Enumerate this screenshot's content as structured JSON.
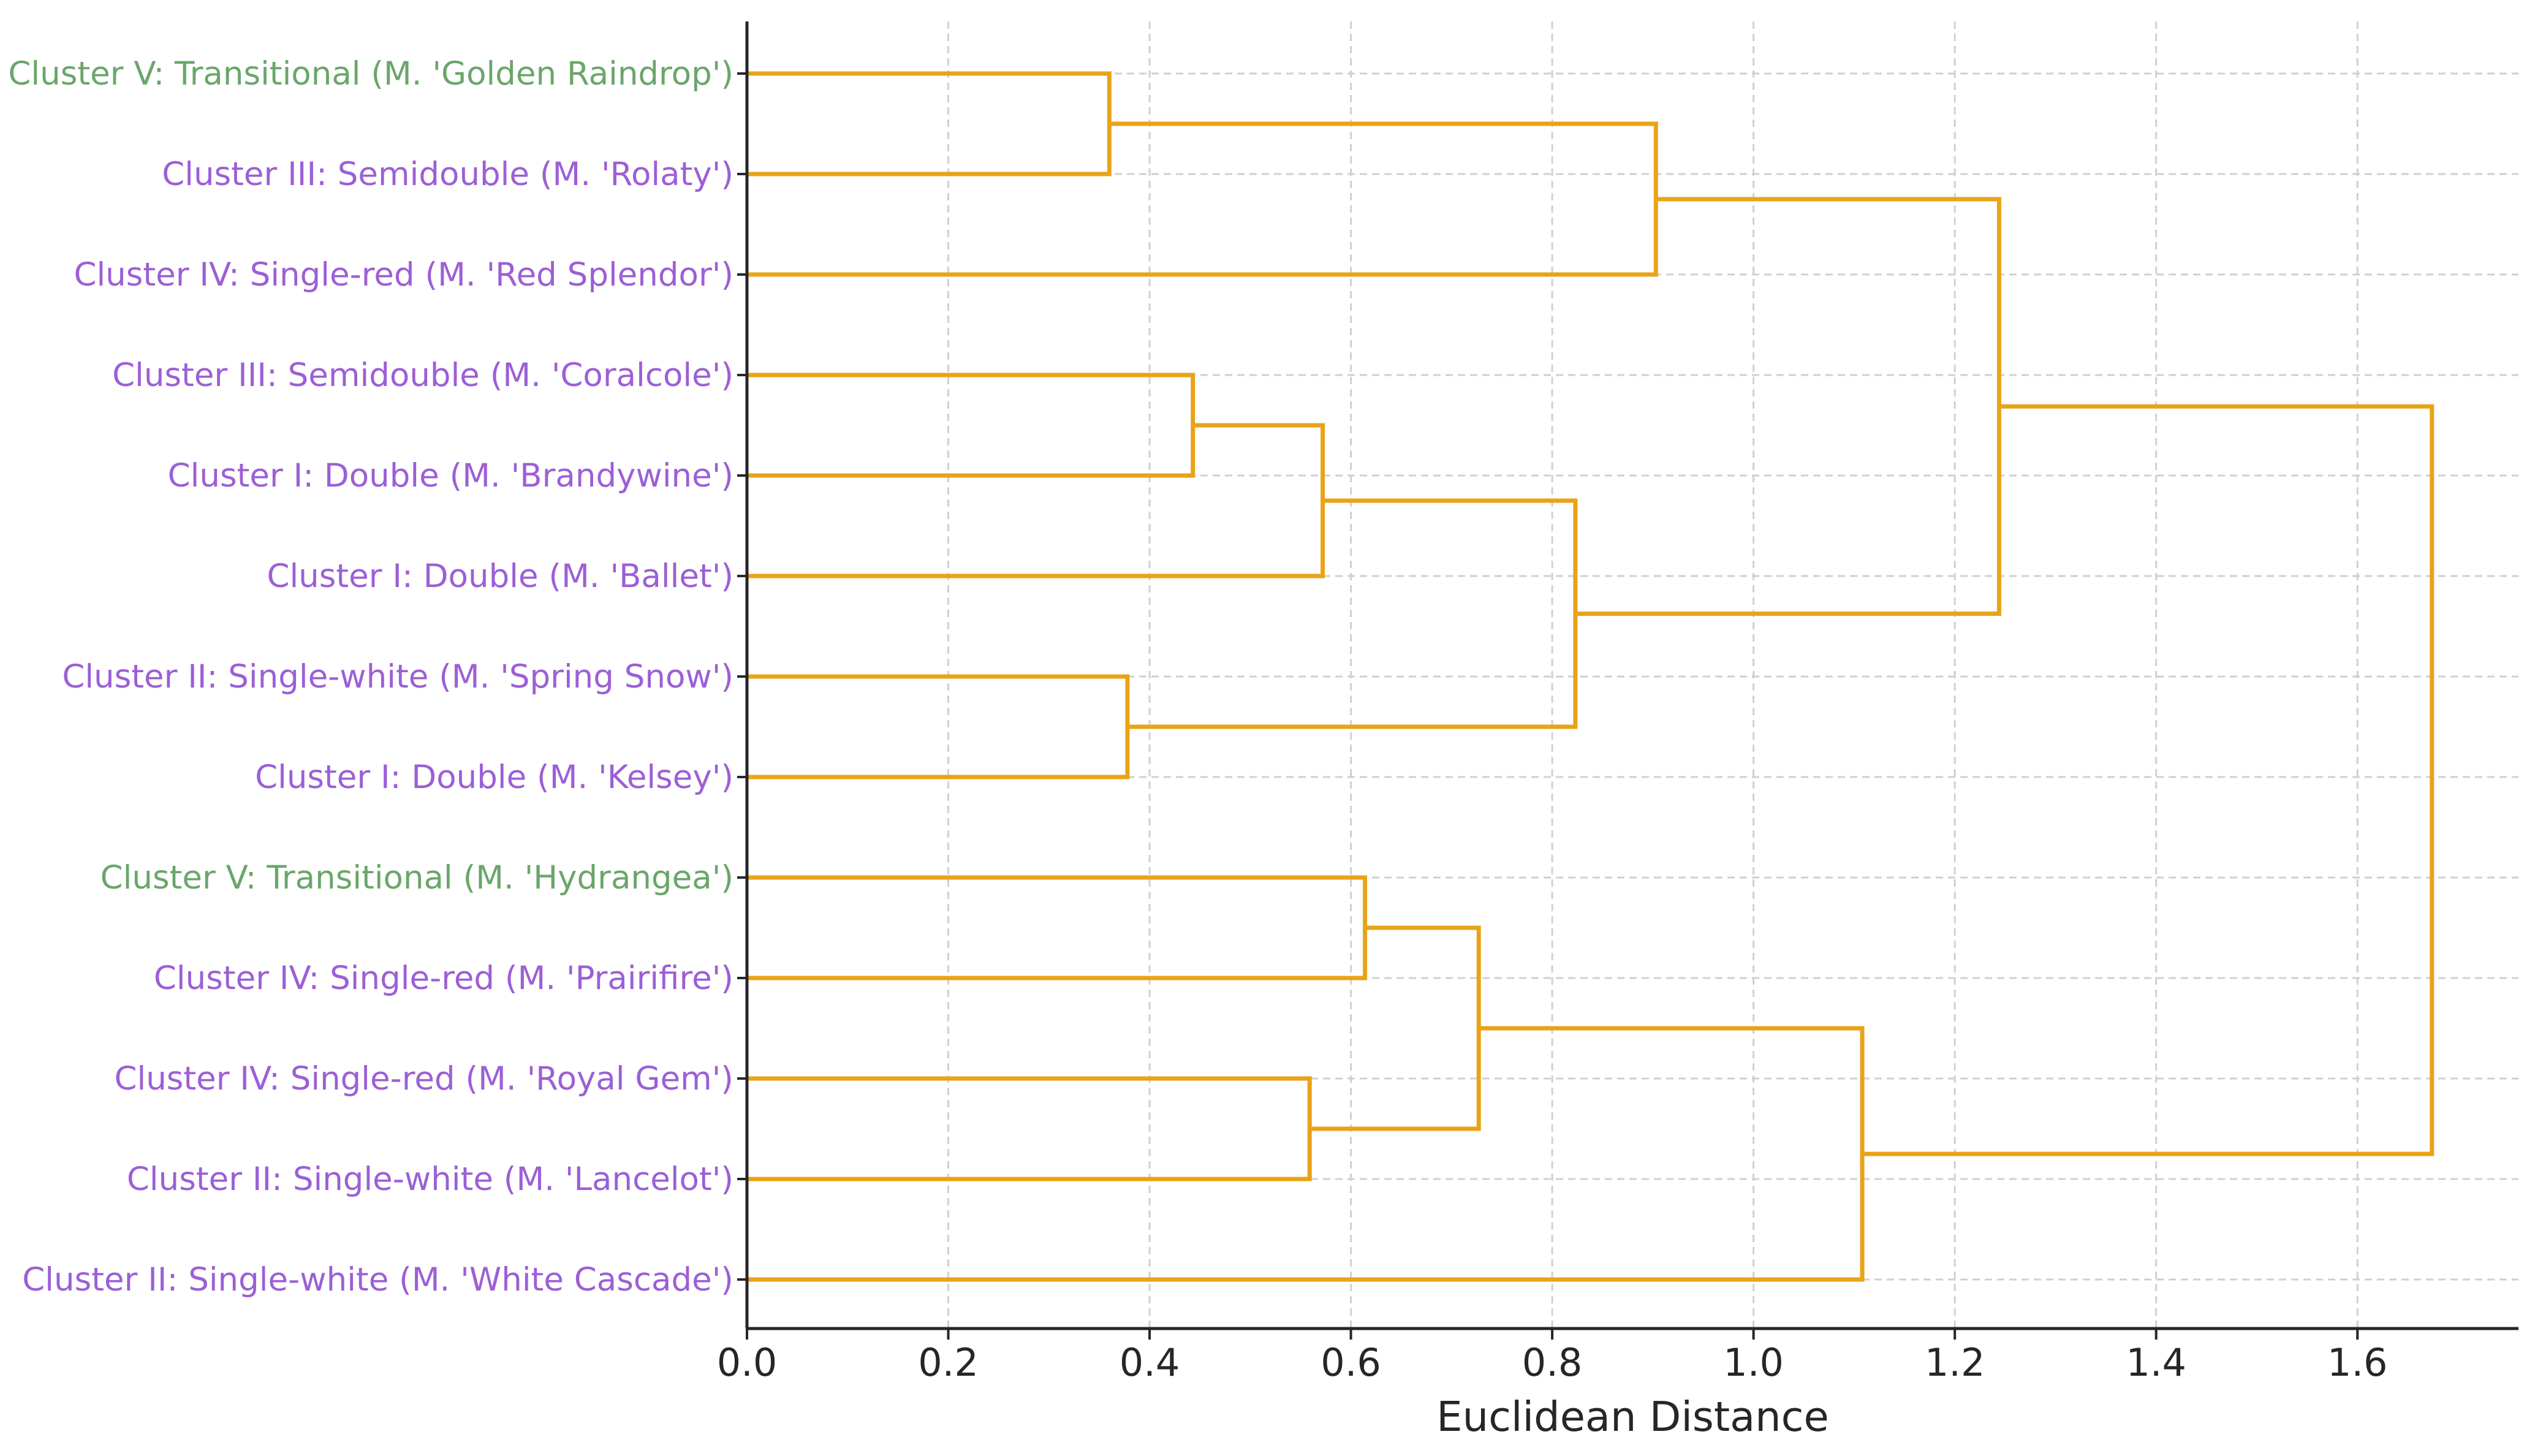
{
  "chart_data": {
    "type": "dendrogram",
    "orientation": "horizontal",
    "xlabel": "Euclidean Distance",
    "xlim": [
      0.0,
      1.76
    ],
    "xticks": [
      0.0,
      0.2,
      0.4,
      0.6,
      0.8,
      1.0,
      1.2,
      1.4,
      1.6
    ],
    "xtick_labels": [
      "0.0",
      "0.2",
      "0.4",
      "0.6",
      "0.8",
      "1.0",
      "1.2",
      "1.4",
      "1.6"
    ],
    "grid": true,
    "link_color": "#e8a317",
    "label_colors": {
      "transitional": "#6aa66a",
      "other": "#9c5fd6"
    },
    "leaves": [
      {
        "label": "Cluster V: Transitional (M. 'Golden Raindrop')",
        "group": "transitional"
      },
      {
        "label": "Cluster III: Semidouble (M. 'Rolaty')",
        "group": "other"
      },
      {
        "label": "Cluster IV: Single-red (M. 'Red Splendor')",
        "group": "other"
      },
      {
        "label": "Cluster III: Semidouble (M. 'Coralcole')",
        "group": "other"
      },
      {
        "label": "Cluster I: Double (M. 'Brandywine')",
        "group": "other"
      },
      {
        "label": "Cluster I: Double (M. 'Ballet')",
        "group": "other"
      },
      {
        "label": "Cluster II: Single-white (M. 'Spring Snow')",
        "group": "other"
      },
      {
        "label": "Cluster I: Double (M. 'Kelsey')",
        "group": "other"
      },
      {
        "label": "Cluster V: Transitional (M. 'Hydrangea')",
        "group": "transitional"
      },
      {
        "label": "Cluster IV: Single-red (M. 'Prairifire')",
        "group": "other"
      },
      {
        "label": "Cluster IV: Single-red (M. 'Royal Gem')",
        "group": "other"
      },
      {
        "label": "Cluster II: Single-white (M. 'Lancelot')",
        "group": "other"
      },
      {
        "label": "Cluster II: Single-white (M. 'White Cascade')",
        "group": "other"
      }
    ],
    "merges": [
      {
        "a": "L0",
        "b": "L1",
        "height": 0.36
      },
      {
        "a": "L3",
        "b": "L4",
        "height": 0.443
      },
      {
        "a": "L6",
        "b": "L7",
        "height": 0.378
      },
      {
        "a": "L10",
        "b": "L11",
        "height": 0.559
      },
      {
        "a": "M1",
        "b": "L5",
        "height": 0.572
      },
      {
        "a": "L8",
        "b": "L9",
        "height": 0.614
      },
      {
        "a": "M5",
        "b": "M3",
        "height": 0.727
      },
      {
        "a": "M4",
        "b": "M2",
        "height": 0.823
      },
      {
        "a": "M0",
        "b": "L2",
        "height": 0.903
      },
      {
        "a": "M6",
        "b": "L12",
        "height": 1.108
      },
      {
        "a": "M8",
        "b": "M7",
        "height": 1.244
      },
      {
        "a": "M10",
        "b": "M9",
        "height": 1.674
      }
    ]
  }
}
